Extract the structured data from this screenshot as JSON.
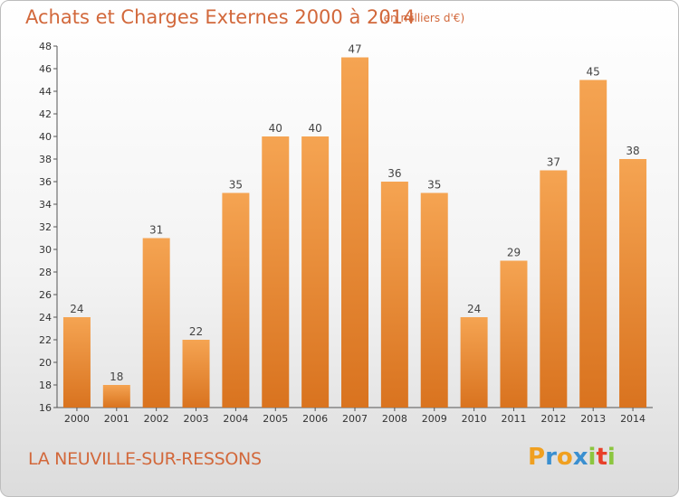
{
  "chart_data": {
    "type": "bar",
    "title": "Achats et Charges Externes 2000 à 2014",
    "subtitle": "(en milliers d'€)",
    "categories": [
      "2000",
      "2001",
      "2002",
      "2003",
      "2004",
      "2005",
      "2006",
      "2007",
      "2008",
      "2009",
      "2010",
      "2011",
      "2012",
      "2013",
      "2014"
    ],
    "values": [
      24,
      18,
      31,
      22,
      35,
      40,
      40,
      47,
      36,
      35,
      24,
      29,
      37,
      45,
      38
    ],
    "ylim": [
      16,
      48
    ],
    "yticks": [
      16,
      18,
      20,
      22,
      24,
      26,
      28,
      30,
      32,
      34,
      36,
      38,
      40,
      42,
      44,
      46,
      48
    ],
    "grid": false,
    "xlabel": "",
    "ylabel": "",
    "bar_color_top": "#f5a452",
    "bar_color_bottom": "#d9731f"
  },
  "footer": {
    "commune": "LA NEUVILLE-SUR-RESSONS"
  },
  "brand": {
    "letters": [
      "P",
      "r",
      "o",
      "x",
      "i",
      "t",
      "i"
    ],
    "colors": [
      "#f0a020",
      "#3a8fd0",
      "#f0a020",
      "#3a8fd0",
      "#8cc63f",
      "#e8402a",
      "#8cc63f"
    ]
  }
}
